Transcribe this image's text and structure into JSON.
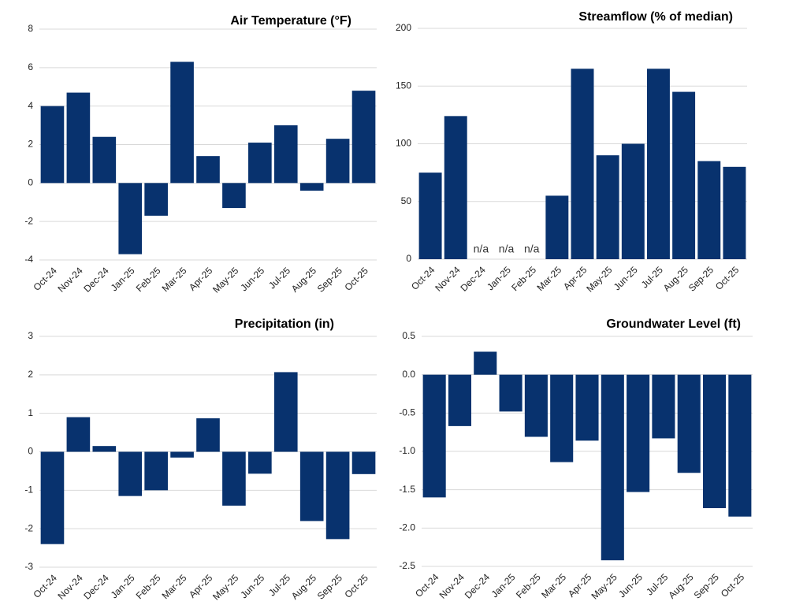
{
  "chart_data": [
    {
      "type": "bar",
      "title": "Air Temperature  (°F)",
      "categories": [
        "Oct-24",
        "Nov-24",
        "Dec-24",
        "Jan-25",
        "Feb-25",
        "Mar-25",
        "Apr-25",
        "May-25",
        "Jun-25",
        "Jul-25",
        "Aug-25",
        "Sep-25",
        "Oct-25"
      ],
      "values": [
        4.0,
        4.7,
        2.4,
        -3.7,
        -1.7,
        6.3,
        1.4,
        -1.3,
        2.1,
        3.0,
        -0.4,
        2.3,
        4.8
      ],
      "color": "#08326e",
      "ylim": [
        -4,
        8
      ],
      "yticks": [
        -4,
        -2,
        0,
        2,
        4,
        6,
        8
      ],
      "grid": true
    },
    {
      "type": "bar",
      "title": "Streamflow (% of median)",
      "categories": [
        "Oct-24",
        "Nov-24",
        "Dec-24",
        "Jan-25",
        "Feb-25",
        "Mar-25",
        "Apr-25",
        "May-25",
        "Jun-25",
        "Jul-25",
        "Aug-25",
        "Sep-25",
        "Oct-25"
      ],
      "values": [
        75,
        124,
        null,
        null,
        null,
        55,
        165,
        90,
        100,
        165,
        145,
        85,
        80
      ],
      "value_labels": [
        null,
        null,
        "n/a",
        "n/a",
        "n/a",
        null,
        null,
        null,
        null,
        null,
        null,
        null,
        null
      ],
      "color": "#08326e",
      "ylim": [
        0,
        200
      ],
      "yticks": [
        0,
        50,
        100,
        150,
        200
      ],
      "grid": true
    },
    {
      "type": "bar",
      "title": "Precipitation (in)",
      "categories": [
        "Oct-24",
        "Nov-24",
        "Dec-24",
        "Jan-25",
        "Feb-25",
        "Mar-25",
        "Apr-25",
        "May-25",
        "Jun-25",
        "Jul-25",
        "Aug-25",
        "Sep-25",
        "Oct-25"
      ],
      "values": [
        -2.4,
        0.9,
        0.15,
        -1.15,
        -1.0,
        -0.15,
        0.87,
        -1.4,
        -0.57,
        2.07,
        -1.8,
        -2.27,
        -0.58
      ],
      "color": "#08326e",
      "ylim": [
        -3,
        3
      ],
      "yticks": [
        -3,
        -2,
        -1,
        0,
        1,
        2,
        3
      ],
      "grid": true
    },
    {
      "type": "bar",
      "title": "Groundwater Level (ft)",
      "categories": [
        "Oct-24",
        "Nov-24",
        "Dec-24",
        "Jan-25",
        "Feb-25",
        "Mar-25",
        "Apr-25",
        "May-25",
        "Jun-25",
        "Jul-25",
        "Aug-25",
        "Sep-25",
        "Oct-25"
      ],
      "values": [
        -1.6,
        -0.67,
        0.3,
        -0.48,
        -0.81,
        -1.14,
        -0.86,
        -2.42,
        -1.53,
        -0.83,
        -1.28,
        -1.74,
        -1.85
      ],
      "color": "#08326e",
      "ylim": [
        -2.5,
        0.5
      ],
      "yticks": [
        -2.5,
        {
          "value": -2,
          "label": "-2.0"
        },
        -1.5,
        {
          "value": -1,
          "label": "-1.0"
        },
        -0.5,
        {
          "value": 0,
          "label": "0.0"
        },
        0.5
      ],
      "grid": true
    }
  ]
}
